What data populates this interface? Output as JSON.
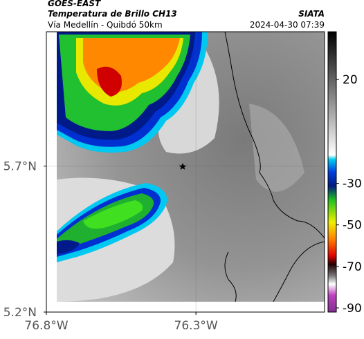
{
  "header": {
    "satellite": "GOES-EAST",
    "title": "Temperatura de Brillo CH13",
    "source": "SIATA",
    "subtitle": "Vía Medellín - Quibdó 50km",
    "datetime": "2024-04-30 07:39"
  },
  "map": {
    "xlim": [
      -76.8,
      -75.87
    ],
    "ylim": [
      5.2,
      6.16
    ],
    "xticks": [
      {
        "value": -76.8,
        "label": "76.8°W"
      },
      {
        "value": -76.3,
        "label": "76.3°W"
      }
    ],
    "yticks": [
      {
        "value": 5.2,
        "label": "5.2°N"
      },
      {
        "value": 5.7,
        "label": "5.7°N"
      }
    ],
    "grid": true
  },
  "colorbar": {
    "lim": [
      -92,
      43
    ],
    "ticks": [
      20,
      -30,
      -50,
      -70,
      -90
    ]
  }
}
